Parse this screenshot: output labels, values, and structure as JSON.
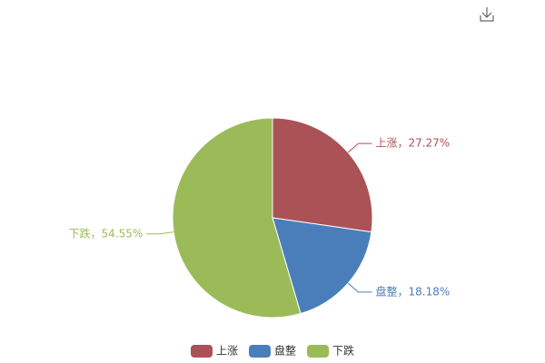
{
  "chart_data": {
    "type": "pie",
    "categories": [
      "上涨",
      "盘整",
      "下跌"
    ],
    "values": [
      27.27,
      18.18,
      54.55
    ],
    "value_labels": [
      "上涨，27.27%",
      "盘整，18.18%",
      "下跌，54.55%"
    ],
    "colors": [
      "#ab5257",
      "#4a7ebb",
      "#9bbb59"
    ],
    "legend": "bottom"
  }
}
